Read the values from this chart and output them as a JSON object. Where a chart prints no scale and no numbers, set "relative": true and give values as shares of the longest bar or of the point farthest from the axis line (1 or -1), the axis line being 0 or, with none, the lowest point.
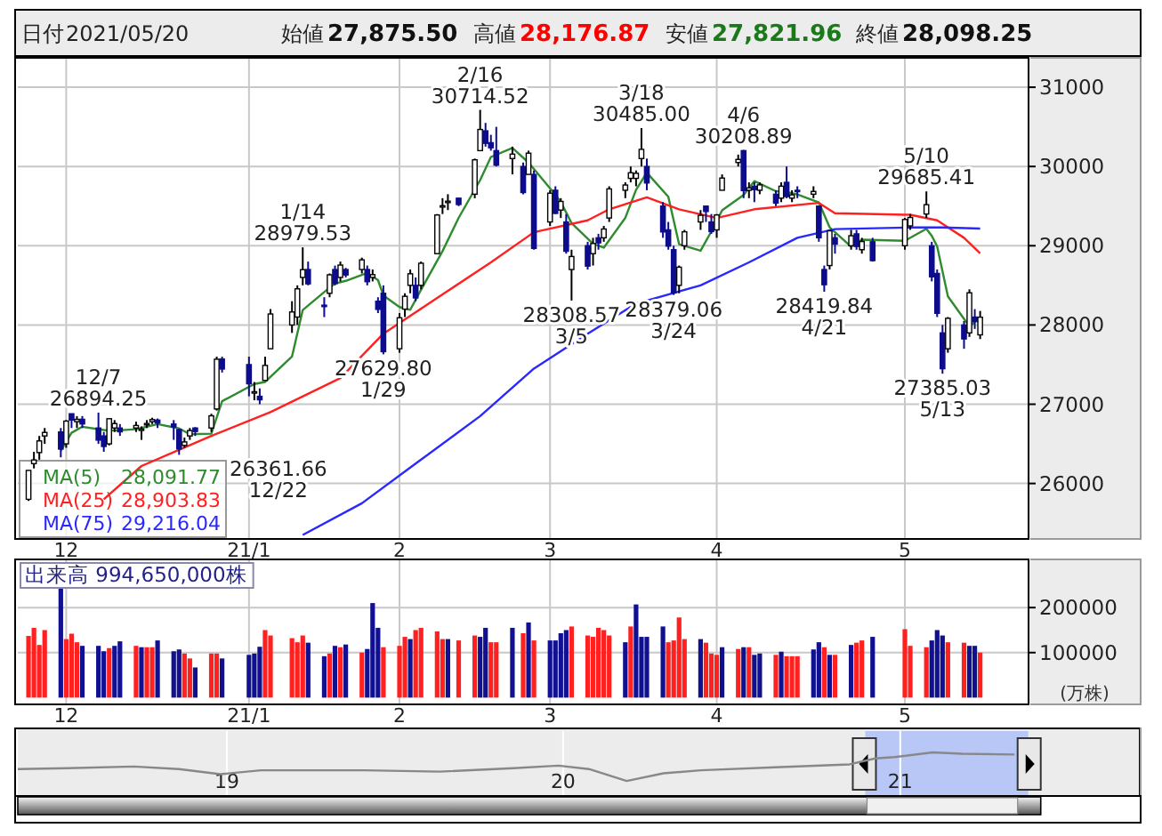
{
  "chart_data": [
    {
      "type": "other",
      "annotations": [
        "日付",
        "2021/05/20",
        "始値",
        "27,875.50",
        "高値",
        "28,176.87",
        "安値",
        "27,821.96",
        "終値",
        "28,098.25"
      ],
      "colors": [
        "#222222",
        "#222222",
        "#222222",
        "#111111",
        "#222222",
        "#ff0000",
        "#222222",
        "#1a7a1a",
        "#222222",
        "#111111"
      ]
    },
    {
      "type": "candlestick",
      "legend": "bottom left",
      "grid": true,
      "x": [
        "2020-11-24",
        "2020-11-25",
        "2020-11-26",
        "2020-11-27",
        "2020-11-30",
        "2020-12-01",
        "2020-12-02",
        "2020-12-03",
        "2020-12-04",
        "2020-12-07",
        "2020-12-08",
        "2020-12-09",
        "2020-12-10",
        "2020-12-11",
        "2020-12-14",
        "2020-12-15",
        "2020-12-16",
        "2020-12-17",
        "2020-12-18",
        "2020-12-21",
        "2020-12-22",
        "2020-12-23",
        "2020-12-24",
        "2020-12-25",
        "2020-12-28",
        "2020-12-29",
        "2020-12-30",
        "2021-01-04",
        "2021-01-05",
        "2021-01-06",
        "2021-01-07",
        "2021-01-08",
        "2021-01-12",
        "2021-01-13",
        "2021-01-14",
        "2021-01-15",
        "2021-01-18",
        "2021-01-19",
        "2021-01-20",
        "2021-01-21",
        "2021-01-22",
        "2021-01-25",
        "2021-01-26",
        "2021-01-27",
        "2021-01-28",
        "2021-01-29",
        "2021-02-01",
        "2021-02-02",
        "2021-02-03",
        "2021-02-04",
        "2021-02-05",
        "2021-02-08",
        "2021-02-09",
        "2021-02-10",
        "2021-02-12",
        "2021-02-15",
        "2021-02-16",
        "2021-02-17",
        "2021-02-18",
        "2021-02-19",
        "2021-02-22",
        "2021-02-24",
        "2021-02-25",
        "2021-02-26",
        "2021-03-01",
        "2021-03-02",
        "2021-03-03",
        "2021-03-04",
        "2021-03-05",
        "2021-03-08",
        "2021-03-09",
        "2021-03-10",
        "2021-03-11",
        "2021-03-12",
        "2021-03-15",
        "2021-03-16",
        "2021-03-17",
        "2021-03-18",
        "2021-03-19",
        "2021-03-22",
        "2021-03-23",
        "2021-03-24",
        "2021-03-25",
        "2021-03-26",
        "2021-03-29",
        "2021-03-30",
        "2021-03-31",
        "2021-04-01",
        "2021-04-02",
        "2021-04-05",
        "2021-04-06",
        "2021-04-07",
        "2021-04-08",
        "2021-04-09",
        "2021-04-12",
        "2021-04-13",
        "2021-04-14",
        "2021-04-15",
        "2021-04-16",
        "2021-04-19",
        "2021-04-20",
        "2021-04-21",
        "2021-04-22",
        "2021-04-23",
        "2021-04-26",
        "2021-04-27",
        "2021-04-28",
        "2021-04-30",
        "2021-05-06",
        "2021-05-07",
        "2021-05-10",
        "2021-05-11",
        "2021-05-12",
        "2021-05-13",
        "2021-05-14",
        "2021-05-17",
        "2021-05-18",
        "2021-05-19",
        "2021-05-20"
      ],
      "ohlc": [
        [
          25800,
          26165,
          25780,
          26165
        ],
        [
          26250,
          26400,
          26190,
          26297
        ],
        [
          26390,
          26600,
          26300,
          26537
        ],
        [
          26600,
          26700,
          26500,
          26644
        ],
        [
          26650,
          26700,
          26330,
          26434
        ],
        [
          26500,
          26800,
          26450,
          26787
        ],
        [
          26880,
          26880,
          26700,
          26800
        ],
        [
          26780,
          26850,
          26700,
          26809
        ],
        [
          26810,
          26850,
          26700,
          26751
        ],
        [
          26700,
          26894.25,
          26500,
          26547
        ],
        [
          26600,
          26650,
          26400,
          26467
        ],
        [
          26500,
          26820,
          26480,
          26817
        ],
        [
          26700,
          26800,
          26650,
          26756
        ],
        [
          26700,
          26750,
          26600,
          26652
        ],
        [
          26700,
          26780,
          26650,
          26732
        ],
        [
          26680,
          26720,
          26550,
          26687
        ],
        [
          26750,
          26800,
          26700,
          26757
        ],
        [
          26780,
          26830,
          26750,
          26806
        ],
        [
          26800,
          26820,
          26700,
          26763
        ],
        [
          26750,
          26800,
          26550,
          26714
        ],
        [
          26680,
          26690,
          26361.66,
          26436
        ],
        [
          26480,
          26580,
          26450,
          26524
        ],
        [
          26600,
          26700,
          26550,
          26668
        ],
        [
          26700,
          26710,
          26600,
          26656
        ],
        [
          26700,
          26880,
          26650,
          26854
        ],
        [
          26940,
          27600,
          26920,
          27568
        ],
        [
          27570,
          27600,
          27400,
          27444
        ],
        [
          27500,
          27600,
          27100,
          27258
        ],
        [
          27150,
          27280,
          27050,
          27158
        ],
        [
          27100,
          27200,
          27000,
          27056
        ],
        [
          27300,
          27600,
          27300,
          27490
        ],
        [
          27700,
          28200,
          27700,
          28139
        ],
        [
          28000,
          28300,
          27900,
          28164
        ],
        [
          28100,
          28500,
          28000,
          28456
        ],
        [
          28600,
          28979.53,
          28500,
          28698
        ],
        [
          28700,
          28800,
          28500,
          28519
        ],
        [
          28250,
          28350,
          28100,
          28242
        ],
        [
          28400,
          28650,
          28350,
          28633
        ],
        [
          28700,
          28750,
          28500,
          28523
        ],
        [
          28600,
          28800,
          28550,
          28756
        ],
        [
          28700,
          28720,
          28600,
          28631
        ],
        [
          28700,
          28850,
          28650,
          28822
        ],
        [
          28700,
          28750,
          28500,
          28546
        ],
        [
          28600,
          28700,
          28550,
          28635
        ],
        [
          28300,
          28350,
          28150,
          28197
        ],
        [
          28400,
          28500,
          27629.8,
          27663
        ],
        [
          27700,
          28150,
          27650,
          28091
        ],
        [
          28200,
          28400,
          28100,
          28362
        ],
        [
          28500,
          28700,
          28400,
          28646
        ],
        [
          28500,
          28600,
          28300,
          28341
        ],
        [
          28500,
          28800,
          28450,
          28779
        ],
        [
          28900,
          29400,
          28900,
          29388
        ],
        [
          29500,
          29600,
          29400,
          29505
        ],
        [
          29550,
          29650,
          29450,
          29562
        ],
        [
          29600,
          29600,
          29500,
          29520
        ],
        [
          29650,
          30100,
          29600,
          30084
        ],
        [
          30200,
          30714.52,
          30200,
          30467
        ],
        [
          30450,
          30550,
          30250,
          30292
        ],
        [
          30300,
          30400,
          30200,
          30236
        ],
        [
          30200,
          30500,
          30000,
          30017
        ],
        [
          30100,
          30250,
          29900,
          30156
        ],
        [
          30000,
          30050,
          29650,
          29671
        ],
        [
          29900,
          30200,
          29900,
          30168
        ],
        [
          29900,
          29950,
          28950,
          28966
        ],
        [
          29300,
          29700,
          29250,
          29663
        ],
        [
          29700,
          29750,
          29400,
          29408
        ],
        [
          29450,
          29600,
          29350,
          29559
        ],
        [
          29300,
          29400,
          28900,
          28930
        ],
        [
          28700,
          28950,
          28308.57,
          28864
        ],
        [
          29000,
          29050,
          28700,
          28743
        ],
        [
          28900,
          29100,
          28750,
          29028
        ],
        [
          29100,
          29150,
          28950,
          29036
        ],
        [
          29100,
          29250,
          29050,
          29211
        ],
        [
          29350,
          29750,
          29300,
          29717
        ],
        [
          29700,
          29800,
          29600,
          29766
        ],
        [
          29850,
          30000,
          29800,
          29921
        ],
        [
          29850,
          29950,
          29750,
          29914
        ],
        [
          30100,
          30485.0,
          30000,
          30216
        ],
        [
          30000,
          30100,
          29700,
          29792
        ],
        [
          29500,
          29550,
          29100,
          29174
        ],
        [
          29200,
          29300,
          28950,
          28995
        ],
        [
          28950,
          29000,
          28379.06,
          28405
        ],
        [
          28500,
          28750,
          28400,
          28729
        ],
        [
          29000,
          29200,
          28950,
          29176
        ],
        [
          29300,
          29450,
          29200,
          29384
        ],
        [
          29500,
          29500,
          29300,
          29432
        ],
        [
          29300,
          29400,
          29150,
          29178
        ],
        [
          29200,
          29400,
          29100,
          29388
        ],
        [
          29700,
          29900,
          29700,
          29854
        ],
        [
          30050,
          30150,
          30000,
          30089
        ],
        [
          30200,
          30208.89,
          29600,
          29696
        ],
        [
          29700,
          29800,
          29600,
          29730
        ],
        [
          29750,
          29800,
          29550,
          29708
        ],
        [
          29700,
          29800,
          29650,
          29768
        ],
        [
          29650,
          29700,
          29500,
          29538
        ],
        [
          29600,
          29800,
          29550,
          29751
        ],
        [
          29800,
          30000,
          29600,
          29620
        ],
        [
          29600,
          29700,
          29550,
          29642
        ],
        [
          29700,
          29750,
          29600,
          29683
        ],
        [
          29650,
          29750,
          29600,
          29685
        ],
        [
          29500,
          29500,
          29050,
          29100
        ],
        [
          28700,
          28750,
          28419.84,
          28508
        ],
        [
          28750,
          29200,
          28700,
          29188
        ],
        [
          29100,
          29150,
          28900,
          29020
        ],
        [
          29000,
          29200,
          28950,
          29126
        ],
        [
          29150,
          29200,
          28950,
          28991
        ],
        [
          28950,
          29100,
          28900,
          29053
        ],
        [
          29050,
          29100,
          28800,
          28812
        ],
        [
          29000,
          29350,
          28950,
          29331
        ],
        [
          29250,
          29400,
          29200,
          29357
        ],
        [
          29400,
          29685.41,
          29350,
          29518
        ],
        [
          29000,
          29050,
          28550,
          28608
        ],
        [
          28650,
          28700,
          28100,
          28147
        ],
        [
          27900,
          28000,
          27385.03,
          27448
        ],
        [
          27700,
          28100,
          27650,
          28084
        ],
        [
          28000,
          28050,
          27700,
          27824
        ],
        [
          27900,
          28450,
          27850,
          28406
        ],
        [
          28100,
          28200,
          27950,
          28044
        ],
        [
          27875.5,
          28176.87,
          27821.96,
          28098.25
        ]
      ],
      "series": [
        {
          "name": "MA(5)",
          "type": "line",
          "color": "#2e8b2e",
          "x": [
            "2020-11-30",
            "2020-12-02",
            "2020-12-04",
            "2020-12-08",
            "2020-12-10",
            "2020-12-14",
            "2020-12-16",
            "2020-12-18",
            "2020-12-22",
            "2020-12-24",
            "2020-12-28",
            "2020-12-30",
            "2021-01-05",
            "2021-01-07",
            "2021-01-12",
            "2021-01-14",
            "2021-01-18",
            "2021-01-20",
            "2021-01-22",
            "2021-01-26",
            "2021-01-28",
            "2021-01-29",
            "2021-02-01",
            "2021-02-03",
            "2021-02-05",
            "2021-02-09",
            "2021-02-12",
            "2021-02-16",
            "2021-02-18",
            "2021-02-22",
            "2021-02-25",
            "2021-03-01",
            "2021-03-03",
            "2021-03-05",
            "2021-03-09",
            "2021-03-11",
            "2021-03-15",
            "2021-03-17",
            "2021-03-19",
            "2021-03-23",
            "2021-03-25",
            "2021-03-29",
            "2021-03-31",
            "2021-04-02",
            "2021-04-06",
            "2021-04-08",
            "2021-04-12",
            "2021-04-14",
            "2021-04-16",
            "2021-04-20",
            "2021-04-22",
            "2021-04-26",
            "2021-04-28",
            "2021-05-06",
            "2021-05-10",
            "2021-05-11",
            "2021-05-12",
            "2021-05-14",
            "2021-05-18",
            "2021-05-20"
          ],
          "values": [
            26415,
            26640,
            26716,
            26675,
            26668,
            26685,
            26717,
            26749,
            26695,
            26621,
            26628,
            27038,
            27256,
            27281,
            27601,
            28189,
            28416,
            28523,
            28557,
            28656,
            28566,
            28373,
            28226,
            28192,
            28444,
            28932,
            29351,
            29828,
            30120,
            30234,
            30050,
            29725,
            29553,
            29285,
            29025,
            28976,
            29352,
            29706,
            29922,
            29618,
            29019,
            28938,
            29180,
            29447,
            29641,
            29815,
            29688,
            29677,
            29647,
            29546,
            29233,
            28988,
            29076,
            29063,
            29214,
            29125,
            28992,
            28361,
            27982,
            28091.77
          ]
        },
        {
          "name": "MA(25)",
          "type": "line",
          "color": "#ff2020",
          "x": [
            "2020-12-08",
            "2020-12-15",
            "2020-12-28",
            "2021-01-08",
            "2021-01-21",
            "2021-01-29",
            "2021-02-10",
            "2021-02-18",
            "2021-02-26",
            "2021-03-08",
            "2021-03-12",
            "2021-03-19",
            "2021-03-25",
            "2021-04-01",
            "2021-04-08",
            "2021-04-20",
            "2021-04-23",
            "2021-05-07",
            "2021-05-12",
            "2021-05-17",
            "2021-05-20"
          ],
          "values": [
            25800,
            26220,
            26600,
            26900,
            27330,
            27890,
            28430,
            28790,
            29170,
            29320,
            29460,
            29610,
            29460,
            29350,
            29460,
            29540,
            29410,
            29390,
            29320,
            29100,
            28903.83
          ]
        },
        {
          "name": "MA(75)",
          "type": "line",
          "color": "#2828ff",
          "x": [
            "2021-01-14",
            "2021-01-25",
            "2021-02-04",
            "2021-02-16",
            "2021-02-26",
            "2021-03-08",
            "2021-03-17",
            "2021-03-29",
            "2021-04-07",
            "2021-04-16",
            "2021-04-23",
            "2021-05-07",
            "2021-05-13",
            "2021-05-20"
          ],
          "values": [
            25350,
            25750,
            26250,
            26850,
            27450,
            27890,
            28270,
            28500,
            28790,
            29100,
            29210,
            29230,
            29230,
            29216.04
          ]
        }
      ],
      "annotations": [
        "28,091.77",
        "28,903.83",
        "29,216.04",
        {
          "text": "12/7\n26894.25",
          "x": "2020-12-07",
          "y": 26894.25
        },
        {
          "text": "26361.66\n12/22",
          "x": "2020-12-22",
          "y": 26361.66
        },
        {
          "text": "1/14\n28979.53",
          "x": "2021-01-14",
          "y": 28979.53
        },
        {
          "text": "27629.80\n1/29",
          "x": "2021-01-29",
          "y": 27629.8
        },
        {
          "text": "2/16\n30714.52",
          "x": "2021-02-16",
          "y": 30714.52
        },
        {
          "text": "28308.57\n3/5",
          "x": "2021-03-05",
          "y": 28308.57
        },
        {
          "text": "3/18\n30485.00",
          "x": "2021-03-18",
          "y": 30485.0
        },
        {
          "text": "28379.06\n3/24",
          "x": "2021-03-24",
          "y": 28379.06
        },
        {
          "text": "4/6\n30208.89",
          "x": "2021-04-06",
          "y": 30208.89
        },
        {
          "text": "28419.84\n4/21",
          "x": "2021-04-21",
          "y": 28419.84
        },
        {
          "text": "5/10\n29685.41",
          "x": "2021-05-10",
          "y": 29685.41
        },
        {
          "text": "27385.03\n5/13",
          "x": "2021-05-13",
          "y": 27385.03
        }
      ],
      "xlim": [
        "2020-11-22",
        "2021-05-29"
      ],
      "xticks": [
        {
          "value": "2020-12-01",
          "label": "12"
        },
        {
          "value": "2021-01-04",
          "label": "21/1"
        },
        {
          "value": "2021-02-01",
          "label": "2"
        },
        {
          "value": "2021-03-01",
          "label": "3"
        },
        {
          "value": "2021-04-01",
          "label": "4"
        },
        {
          "value": "2021-05-06",
          "label": "5"
        }
      ],
      "ylim": [
        25300,
        31360
      ],
      "yticks": [
        26000,
        27000,
        28000,
        29000,
        30000,
        31000
      ]
    },
    {
      "type": "bar",
      "grid": true,
      "ylabel": "(万株)",
      "annotations": [
        "出来高 994,650,000株"
      ],
      "values": [
        137000,
        155000,
        117000,
        150000,
        247000,
        130000,
        142000,
        123000,
        115000,
        115000,
        103000,
        110000,
        115000,
        125000,
        115000,
        112000,
        112000,
        112000,
        127000,
        103000,
        107000,
        98000,
        87000,
        67000,
        98000,
        98000,
        87000,
        95000,
        98000,
        113000,
        150000,
        138000,
        132000,
        123000,
        138000,
        122000,
        92000,
        98000,
        115000,
        112000,
        118000,
        100000,
        108000,
        210000,
        155000,
        112000,
        115000,
        135000,
        130000,
        150000,
        155000,
        147000,
        130000,
        130000,
        127000,
        138000,
        135000,
        155000,
        123000,
        123000,
        155000,
        143000,
        167000,
        127000,
        127000,
        127000,
        143000,
        150000,
        158000,
        138000,
        135000,
        155000,
        150000,
        138000,
        123000,
        158000,
        207000,
        135000,
        135000,
        158000,
        123000,
        127000,
        178000,
        130000,
        130000,
        122000,
        98000,
        95000,
        112000,
        108000,
        112000,
        112000,
        95000,
        98000,
        95000,
        102000,
        92000,
        92000,
        92000,
        107000,
        123000,
        112000,
        95000,
        95000,
        117000,
        122000,
        127000,
        135000,
        152000,
        115000,
        112000,
        127000,
        150000,
        138000,
        123000,
        122000,
        115000,
        115000,
        100000
      ],
      "colors": [
        "#ff2020",
        "#ff2020",
        "#ff2020",
        "#ff2020",
        "#101090",
        "#ff2020",
        "#ff2020",
        "#ff2020",
        "#101090",
        "#101090",
        "#101090",
        "#ff2020",
        "#101090",
        "#101090",
        "#ff2020",
        "#101090",
        "#ff2020",
        "#ff2020",
        "#101090",
        "#101090",
        "#101090",
        "#ff2020",
        "#ff2020",
        "#101090",
        "#ff2020",
        "#ff2020",
        "#101090",
        "#101090",
        "#101090",
        "#101090",
        "#ff2020",
        "#ff2020",
        "#ff2020",
        "#ff2020",
        "#ff2020",
        "#101090",
        "#101090",
        "#ff2020",
        "#101090",
        "#ff2020",
        "#101090",
        "#ff2020",
        "#101090",
        "#101090",
        "#101090",
        "#ff2020",
        "#ff2020",
        "#ff2020",
        "#101090",
        "#ff2020",
        "#ff2020",
        "#ff2020",
        "#ff2020",
        "#101090",
        "#ff2020",
        "#ff2020",
        "#101090",
        "#101090",
        "#ff2020",
        "#ff2020",
        "#101090",
        "#ff2020",
        "#101090",
        "#ff2020",
        "#101090",
        "#101090",
        "#101090",
        "#101090",
        "#ff2020",
        "#ff2020",
        "#ff2020",
        "#ff2020",
        "#ff2020",
        "#ff2020",
        "#101090",
        "#ff2020",
        "#101090",
        "#101090",
        "#101090",
        "#101090",
        "#ff2020",
        "#ff2020",
        "#ff2020",
        "#ff2020",
        "#101090",
        "#ff2020",
        "#ff2020",
        "#ff2020",
        "#101090",
        "#ff2020",
        "#101090",
        "#ff2020",
        "#101090",
        "#101090",
        "#ff2020",
        "#101090",
        "#ff2020",
        "#ff2020",
        "#ff2020",
        "#101090",
        "#101090",
        "#ff2020",
        "#101090",
        "#ff2020",
        "#101090",
        "#ff2020",
        "#ff2020",
        "#101090",
        "#ff2020",
        "#ff2020",
        "#ff2020",
        "#101090",
        "#101090",
        "#101090",
        "#ff2020",
        "#ff2020",
        "#101090",
        "#101090",
        "#ff2020"
      ],
      "x": [
        "2020-11-24",
        "2020-11-25",
        "2020-11-26",
        "2020-11-27",
        "2020-11-30",
        "2020-12-01",
        "2020-12-02",
        "2020-12-03",
        "2020-12-04",
        "2020-12-07",
        "2020-12-08",
        "2020-12-09",
        "2020-12-10",
        "2020-12-11",
        "2020-12-14",
        "2020-12-15",
        "2020-12-16",
        "2020-12-17",
        "2020-12-18",
        "2020-12-21",
        "2020-12-22",
        "2020-12-23",
        "2020-12-24",
        "2020-12-25",
        "2020-12-28",
        "2020-12-29",
        "2020-12-30",
        "2021-01-04",
        "2021-01-05",
        "2021-01-06",
        "2021-01-07",
        "2021-01-08",
        "2021-01-12",
        "2021-01-13",
        "2021-01-14",
        "2021-01-15",
        "2021-01-18",
        "2021-01-19",
        "2021-01-20",
        "2021-01-21",
        "2021-01-22",
        "2021-01-25",
        "2021-01-26",
        "2021-01-27",
        "2021-01-28",
        "2021-01-29",
        "2021-02-01",
        "2021-02-02",
        "2021-02-03",
        "2021-02-04",
        "2021-02-05",
        "2021-02-08",
        "2021-02-09",
        "2021-02-10",
        "2021-02-12",
        "2021-02-15",
        "2021-02-16",
        "2021-02-17",
        "2021-02-18",
        "2021-02-19",
        "2021-02-22",
        "2021-02-24",
        "2021-02-25",
        "2021-02-26",
        "2021-03-01",
        "2021-03-02",
        "2021-03-03",
        "2021-03-04",
        "2021-03-05",
        "2021-03-08",
        "2021-03-09",
        "2021-03-10",
        "2021-03-11",
        "2021-03-12",
        "2021-03-15",
        "2021-03-16",
        "2021-03-17",
        "2021-03-18",
        "2021-03-19",
        "2021-03-22",
        "2021-03-23",
        "2021-03-24",
        "2021-03-25",
        "2021-03-26",
        "2021-03-29",
        "2021-03-30",
        "2021-03-31",
        "2021-04-01",
        "2021-04-02",
        "2021-04-05",
        "2021-04-06",
        "2021-04-07",
        "2021-04-08",
        "2021-04-09",
        "2021-04-12",
        "2021-04-13",
        "2021-04-14",
        "2021-04-15",
        "2021-04-16",
        "2021-04-19",
        "2021-04-20",
        "2021-04-21",
        "2021-04-22",
        "2021-04-23",
        "2021-04-26",
        "2021-04-27",
        "2021-04-28",
        "2021-04-30",
        "2021-05-06",
        "2021-05-07",
        "2021-05-10",
        "2021-05-11",
        "2021-05-12",
        "2021-05-13",
        "2021-05-14",
        "2021-05-17",
        "2021-05-18",
        "2021-05-19",
        "2021-05-20"
      ],
      "xlim": [
        "2020-11-22",
        "2021-05-29"
      ],
      "xticks": [
        {
          "value": "2020-12-01",
          "label": "12"
        },
        {
          "value": "2021-01-04",
          "label": "21/1"
        },
        {
          "value": "2021-02-01",
          "label": "2"
        },
        {
          "value": "2021-03-01",
          "label": "3"
        },
        {
          "value": "2021-04-01",
          "label": "4"
        },
        {
          "value": "2021-05-06",
          "label": "5"
        }
      ],
      "ylim": [
        -15000,
        305000
      ],
      "yticks": [
        100000,
        200000
      ]
    },
    {
      "type": "line",
      "relative": true,
      "grid": "x",
      "series": [
        {
          "color": "#888888",
          "x": [
            "2018-05-19",
            "2018-07-12",
            "2018-09-22",
            "2018-11-10",
            "2018-12-25",
            "2019-02-07",
            "2019-05-31",
            "2019-08-20",
            "2019-11-08",
            "2019-12-27",
            "2020-01-29",
            "2020-03-10",
            "2020-04-19",
            "2020-05-29",
            "2020-08-18",
            "2020-11-07",
            "2020-12-05",
            "2020-12-26",
            "2021-02-05",
            "2021-03-09",
            "2021-05-05"
          ],
          "values": [
            0.61,
            0.63,
            0.67,
            0.61,
            0.49,
            0.58,
            0.58,
            0.55,
            0.63,
            0.69,
            0.61,
            0.33,
            0.51,
            0.58,
            0.65,
            0.72,
            0.86,
            0.89,
            1,
            0.97,
            0.95
          ]
        }
      ],
      "bands": [
        {
          "axis": "x",
          "from": "2020-11-24",
          "to": "2021-05-20",
          "color": "#b9c7f7"
        }
      ],
      "xlim": [
        "2018-05-19",
        "2021-09-18"
      ],
      "xticks": [
        {
          "value": "2019-01-01",
          "label": "19"
        },
        {
          "value": "2020-01-01",
          "label": "20"
        },
        {
          "value": "2021-01-01",
          "label": "21"
        }
      ]
    }
  ]
}
